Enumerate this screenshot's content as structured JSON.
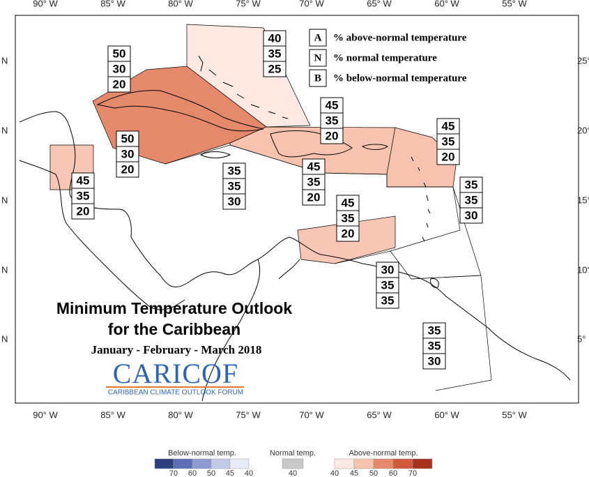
{
  "title": "Minimum Temperature Outlook",
  "title_line2": "for the Caribbean",
  "period": "January - February - March 2018",
  "logo": {
    "name": "CARICOF",
    "subtitle": "CARIBBEAN CLIMATE OUTLOOK FORUM"
  },
  "key": [
    {
      "letter": "A",
      "text": "% above-normal temperature"
    },
    {
      "letter": "N",
      "text": "% normal temperature"
    },
    {
      "letter": "B",
      "text": "% below-normal temperature"
    }
  ],
  "lon_labels": [
    "90° W",
    "85° W",
    "80° W",
    "75° W",
    "70° W",
    "65° W",
    "60° W",
    "55° W"
  ],
  "lat_labels_left": [
    "N",
    "N",
    "N",
    "N",
    "N"
  ],
  "lat_labels_right": [
    "25°",
    "20°",
    "15°",
    "10°",
    "5°"
  ],
  "regions": [
    {
      "color": "#fde9e2"
    },
    {
      "color": "#e5896b"
    },
    {
      "color": "#f7c6b4"
    },
    {
      "color": "#f7c3ae"
    },
    {
      "color": "#f7c3ae"
    },
    {
      "color": "#f7c6b4"
    }
  ],
  "boxes": [
    {
      "values": [
        40,
        35,
        25
      ]
    },
    {
      "values": [
        50,
        30,
        20
      ]
    },
    {
      "values": [
        50,
        30,
        20
      ]
    },
    {
      "values": [
        45,
        35,
        20
      ]
    },
    {
      "values": [
        35,
        35,
        30
      ]
    },
    {
      "values": [
        45,
        35,
        20
      ]
    },
    {
      "values": [
        45,
        35,
        20
      ]
    },
    {
      "values": [
        45,
        35,
        20
      ]
    },
    {
      "values": [
        35,
        35,
        30
      ]
    },
    {
      "values": [
        45,
        35,
        20
      ]
    },
    {
      "values": [
        30,
        35,
        35
      ]
    },
    {
      "values": [
        35,
        35,
        30
      ]
    }
  ],
  "colorbar": {
    "below": {
      "label": "Below-normal temp.",
      "ticks": [
        70,
        60,
        50,
        45,
        40
      ],
      "colors": [
        "#2e3f7f",
        "#5c6fb5",
        "#8f9bd0",
        "#c3cae8",
        "#e9ecf7"
      ]
    },
    "normal": {
      "label": "Normal temp.",
      "ticks": [
        40
      ],
      "colors": [
        "#c8c8c8"
      ]
    },
    "above": {
      "label": "Above-normal temp.",
      "ticks": [
        40,
        45,
        50,
        60,
        70
      ],
      "colors": [
        "#fde9e2",
        "#f7c3ae",
        "#e5896b",
        "#cf5a3e",
        "#a8321e"
      ]
    }
  }
}
